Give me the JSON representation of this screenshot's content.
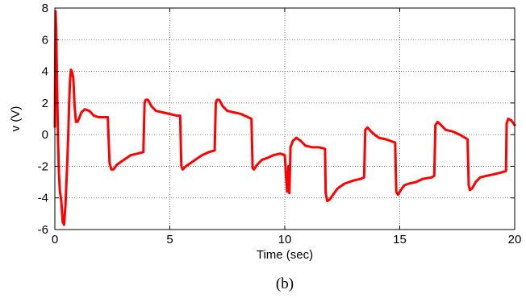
{
  "chart_data": {
    "type": "line",
    "title": "",
    "xlabel": "Time (sec)",
    "ylabel": "v (V)",
    "caption": "(b)",
    "xlim": [
      0,
      20
    ],
    "ylim": [
      -6,
      8
    ],
    "xticks": [
      0,
      5,
      10,
      15,
      20
    ],
    "yticks": [
      -6,
      -4,
      -2,
      0,
      2,
      4,
      6,
      8
    ],
    "grid": true,
    "series": [
      {
        "color": "#ff0000",
        "x": [
          0,
          0.03,
          0.06,
          0.1,
          0.14,
          0.18,
          0.22,
          0.28,
          0.34,
          0.4,
          0.46,
          0.52,
          0.58,
          0.62,
          0.66,
          0.7,
          0.74,
          0.8,
          0.86,
          0.92,
          0.98,
          1.05,
          1.15,
          1.3,
          1.5,
          1.7,
          1.9,
          2.1,
          2.3,
          2.38,
          2.46,
          2.55,
          2.7,
          2.9,
          3.1,
          3.3,
          3.6,
          3.85,
          3.9,
          3.95,
          4.05,
          4.2,
          4.4,
          4.7,
          5.0,
          5.3,
          5.45,
          5.5,
          5.56,
          5.7,
          5.9,
          6.1,
          6.4,
          6.7,
          6.95,
          7.0,
          7.05,
          7.15,
          7.3,
          7.5,
          7.8,
          8.1,
          8.4,
          8.55,
          8.6,
          8.66,
          8.8,
          9.0,
          9.2,
          9.5,
          9.8,
          10.0,
          10.05,
          10.1,
          10.16,
          10.2,
          10.25,
          10.35,
          10.5,
          10.7,
          10.9,
          11.2,
          11.5,
          11.75,
          11.78,
          11.85,
          11.95,
          12.1,
          12.3,
          12.6,
          13.0,
          13.3,
          13.45,
          13.5,
          13.6,
          13.75,
          13.9,
          14.1,
          14.4,
          14.8,
          14.85,
          14.92,
          15.05,
          15.2,
          15.4,
          15.7,
          16.0,
          16.4,
          16.5,
          16.55,
          16.65,
          16.8,
          17.0,
          17.3,
          17.6,
          17.95,
          18.0,
          18.05,
          18.15,
          18.3,
          18.5,
          18.8,
          19.1,
          19.4,
          19.62,
          19.65,
          19.72,
          19.85,
          19.95,
          20.0
        ],
        "y": [
          0.5,
          7.8,
          6.5,
          3.0,
          -0.5,
          -2.5,
          -3.6,
          -4.2,
          -5.5,
          -5.7,
          -4.5,
          -2.5,
          -0.2,
          2.0,
          3.4,
          4.1,
          4.0,
          3.6,
          1.8,
          0.8,
          0.8,
          1.0,
          1.4,
          1.6,
          1.5,
          1.2,
          1.1,
          1.1,
          1.1,
          -1.8,
          -2.2,
          -2.2,
          -1.9,
          -1.7,
          -1.5,
          -1.3,
          -1.2,
          -1.1,
          2.0,
          2.2,
          2.2,
          1.8,
          1.5,
          1.4,
          1.3,
          1.2,
          1.2,
          -2.0,
          -2.2,
          -2.0,
          -1.8,
          -1.6,
          -1.3,
          -1.1,
          -1.0,
          2.0,
          2.2,
          2.2,
          1.8,
          1.5,
          1.4,
          1.3,
          1.1,
          1.0,
          -2.1,
          -2.2,
          -1.9,
          -1.6,
          -1.5,
          -1.3,
          -1.2,
          -1.3,
          -2.5,
          -3.6,
          -2.0,
          -3.7,
          -0.8,
          -0.4,
          -0.2,
          -0.4,
          -0.7,
          -0.8,
          -0.8,
          -0.9,
          -3.7,
          -4.2,
          -4.1,
          -3.8,
          -3.4,
          -3.1,
          -2.9,
          -2.8,
          -2.7,
          0.3,
          0.45,
          0.2,
          0.0,
          -0.2,
          -0.3,
          -0.5,
          -3.6,
          -3.8,
          -3.5,
          -3.2,
          -3.1,
          -3.0,
          -2.8,
          -2.7,
          -2.6,
          0.6,
          0.8,
          0.6,
          0.3,
          0.2,
          0.0,
          -0.3,
          -3.2,
          -3.5,
          -3.4,
          -3.0,
          -2.7,
          -2.6,
          -2.5,
          -2.4,
          -2.3,
          0.7,
          1.0,
          0.9,
          0.7,
          0.6
        ]
      }
    ]
  }
}
